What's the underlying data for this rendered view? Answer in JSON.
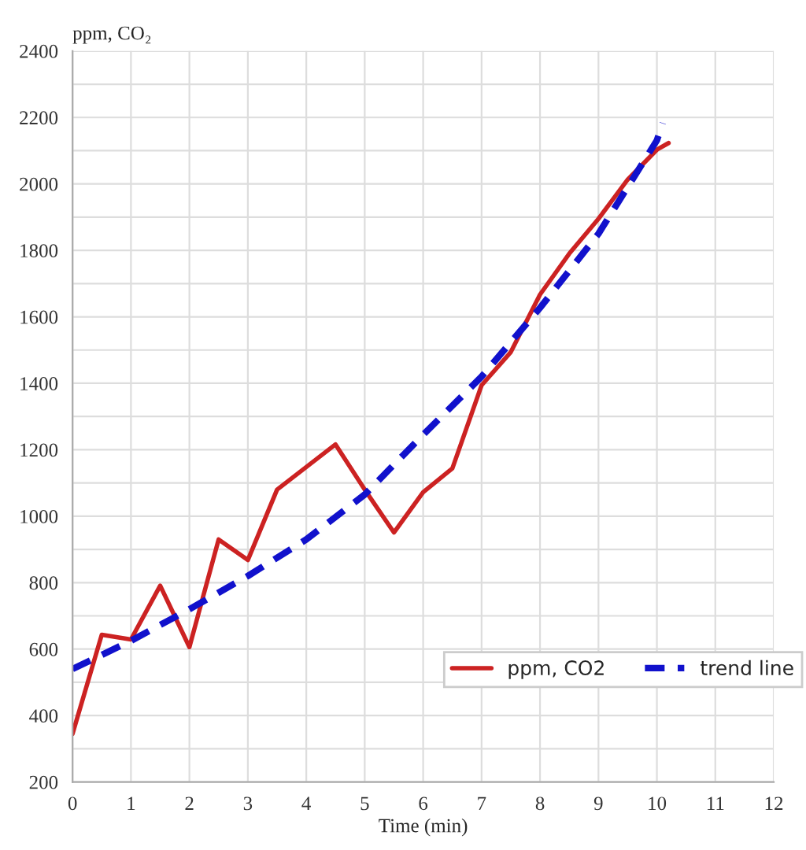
{
  "chart_data": {
    "type": "line",
    "xlabel": "Time (min)",
    "ylabel": "ppm, CO₂",
    "series": [
      {
        "name": "ppm, CO2",
        "color": "#cc2222",
        "line_style": "solid",
        "x": [
          0,
          0.5,
          1,
          1.5,
          2,
          2.5,
          3,
          3.5,
          4,
          4.5,
          5,
          5.5,
          6,
          6.5,
          7,
          7.5,
          8,
          8.5,
          9,
          9.5,
          10,
          10.2
        ],
        "values": [
          345,
          643,
          629,
          791,
          606,
          930,
          868,
          1080,
          1148,
          1216,
          1080,
          951,
          1072,
          1144,
          1394,
          1494,
          1667,
          1790,
          1895,
          2013,
          2103,
          2123
        ]
      },
      {
        "name": "trend line",
        "color": "#1111cc",
        "line_style": "dashed",
        "x": [
          0,
          1,
          2,
          3,
          4,
          5,
          6,
          7,
          8,
          9,
          10,
          10.1
        ],
        "values": [
          540,
          625,
          720,
          820,
          930,
          1065,
          1245,
          1420,
          1627,
          1850,
          2131,
          2183
        ]
      }
    ],
    "xlim": [
      0,
      12
    ],
    "xticks": [
      0,
      1,
      2,
      3,
      4,
      5,
      6,
      7,
      8,
      9,
      10,
      11,
      12
    ],
    "ylim": [
      200,
      2400
    ],
    "yticks": [
      200,
      {
        "value": 300,
        "label": null
      },
      400,
      {
        "value": 500,
        "label": null
      },
      600,
      {
        "value": 700,
        "label": null
      },
      800,
      {
        "value": 900,
        "label": null
      },
      1000,
      {
        "value": 1100,
        "label": null
      },
      1200,
      {
        "value": 1300,
        "label": null
      },
      1400,
      {
        "value": 1500,
        "label": null
      },
      1600,
      {
        "value": 1700,
        "label": null
      },
      1800,
      {
        "value": 1900,
        "label": null
      },
      2000,
      {
        "value": 2100,
        "label": null
      },
      2200,
      {
        "value": 2300,
        "label": null
      },
      2400
    ],
    "grid": true,
    "legend": "bottom right"
  }
}
